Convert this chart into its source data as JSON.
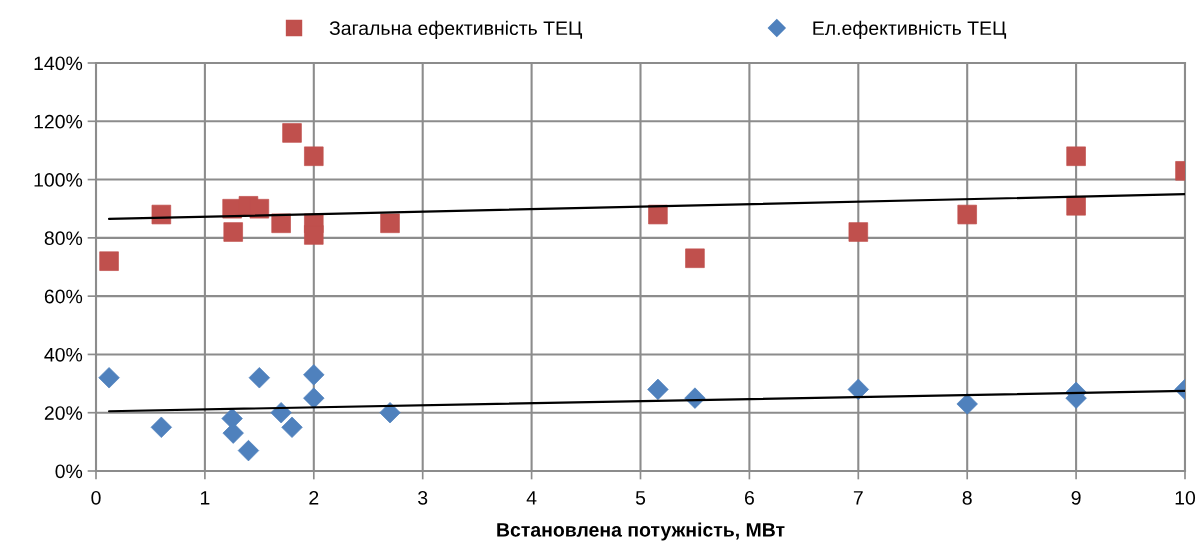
{
  "chart_data": {
    "type": "scatter",
    "xlabel": "Встановлена потужність, МВт",
    "xlim": [
      0,
      10
    ],
    "xticks": [
      0,
      1,
      2,
      3,
      4,
      5,
      6,
      7,
      8,
      9,
      10
    ],
    "ylim": [
      0,
      140
    ],
    "yticks": [
      {
        "value": 0,
        "label": "0%"
      },
      {
        "value": 20,
        "label": "20%"
      },
      {
        "value": 40,
        "label": "40%"
      },
      {
        "value": 60,
        "label": "60%"
      },
      {
        "value": 80,
        "label": "80%"
      },
      {
        "value": 100,
        "label": "100%"
      },
      {
        "value": 120,
        "label": "120%"
      },
      {
        "value": 140,
        "label": "140%"
      }
    ],
    "grid": true,
    "legend": "top",
    "series": [
      {
        "name": "Загальна ефективність ТЕЦ",
        "color": "#c0504d",
        "marker": "square",
        "x": [
          0.12,
          0.6,
          1.25,
          1.26,
          1.4,
          1.5,
          1.7,
          1.8,
          2,
          2,
          2,
          2.7,
          5.16,
          5.5,
          7,
          8,
          9,
          9,
          10
        ],
        "values": [
          72,
          88,
          90,
          82,
          91,
          90,
          85,
          116,
          108,
          85,
          81,
          85,
          88,
          73,
          82,
          88,
          108,
          91,
          103
        ]
      },
      {
        "name": "Ел.ефективність ТЕЦ",
        "color": "#4f81bd",
        "marker": "diamond",
        "x": [
          0.12,
          0.6,
          1.25,
          1.26,
          1.4,
          1.5,
          1.7,
          1.8,
          2,
          2,
          2.7,
          5.16,
          5.5,
          7,
          8,
          9,
          9,
          10
        ],
        "values": [
          32,
          15,
          18,
          13,
          7,
          32,
          20,
          15,
          33,
          25,
          20,
          28,
          25,
          28,
          23,
          27,
          25,
          28
        ]
      },
      {
        "type": "line",
        "color": "#000000",
        "marker": "none",
        "x": [
          0.12,
          10
        ],
        "values": [
          86.5,
          95
        ]
      },
      {
        "type": "line",
        "color": "#000000",
        "marker": "none",
        "x": [
          0.12,
          10
        ],
        "values": [
          20.5,
          27.5
        ]
      }
    ]
  }
}
